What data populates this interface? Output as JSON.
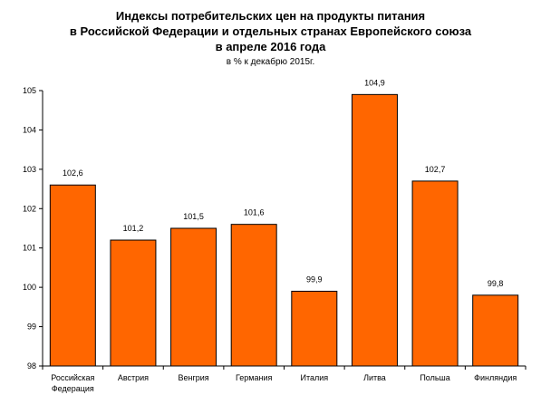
{
  "chart_data": {
    "type": "bar",
    "title": [
      "Индексы потребительских цен на продукты питания",
      "в Российской Федерации и отдельных странах Европейского союза",
      "в апреле 2016 года"
    ],
    "subtitle": "в % к декабрю 2015г.",
    "categories": [
      [
        "Российская",
        "Федерация"
      ],
      [
        "Австрия"
      ],
      [
        "Венгрия"
      ],
      [
        "Германия"
      ],
      [
        "Италия"
      ],
      [
        "Литва"
      ],
      [
        "Польша"
      ],
      [
        "Финляндия"
      ]
    ],
    "values": [
      102.6,
      101.2,
      101.5,
      101.6,
      99.9,
      104.9,
      102.7,
      99.8
    ],
    "value_labels": [
      "102,6",
      "101,2",
      "101,5",
      "101,6",
      "99,9",
      "104,9",
      "102,7",
      "99,8"
    ],
    "ylim": [
      98,
      105
    ],
    "yticks": [
      98,
      99,
      100,
      101,
      102,
      103,
      104,
      105
    ],
    "ytick_labels": [
      "98",
      "99",
      "100",
      "101",
      "102",
      "103",
      "104",
      "105"
    ],
    "xlabel": "",
    "ylabel": "",
    "grid": false,
    "bar_color": "#ff6600",
    "bar_edge_color": "#000000"
  }
}
